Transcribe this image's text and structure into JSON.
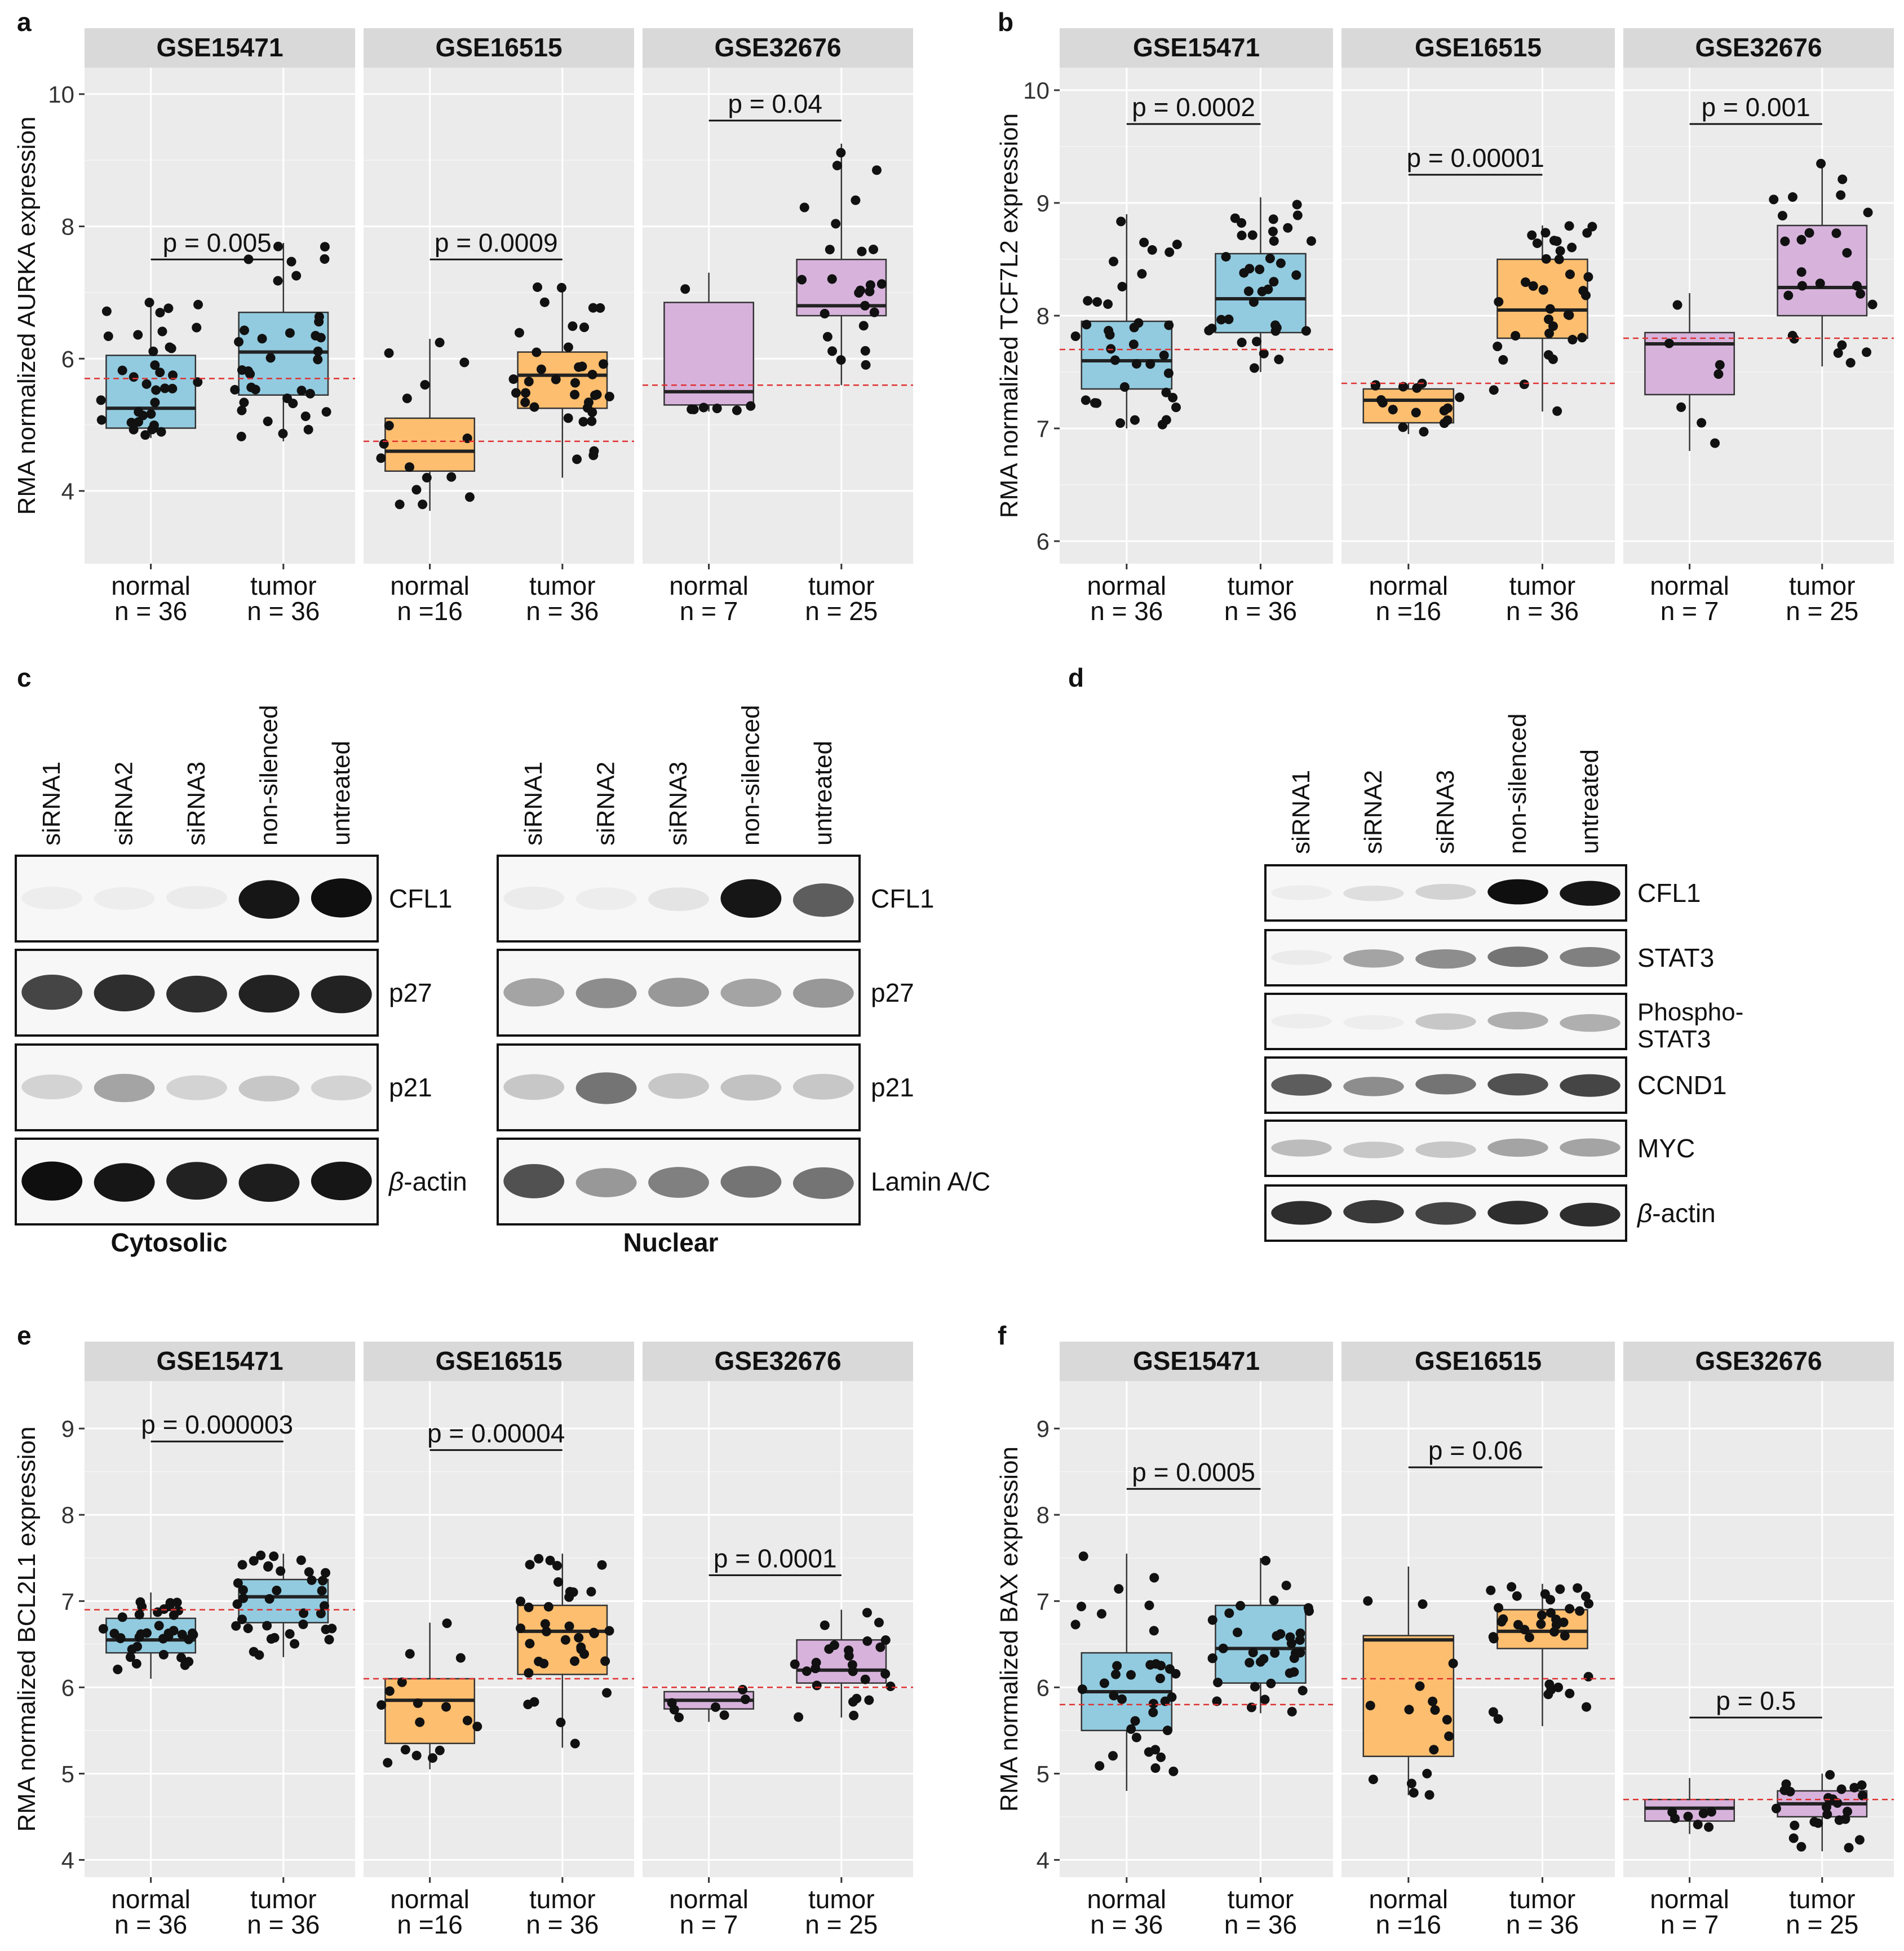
{
  "colors": {
    "normal": "#8ecae6",
    "GSE15471": "#92cbe0",
    "GSE16515": "#fdbe6f",
    "GSE32676": "#d7b3dc",
    "panel_bg": "#ebebeb",
    "strip_bg": "#d9d9d9",
    "ref_line": "#e03030"
  },
  "chart_data": [
    {
      "id": "a",
      "type": "box",
      "panel_label": "a",
      "ylabel": "RMA normalized AURKA expression",
      "ylim": [
        2.9,
        10.4
      ],
      "yticks": [
        4,
        6,
        8,
        10
      ],
      "facets": [
        {
          "title": "GSE15471",
          "p_label": "p = 0.005",
          "p_y": 7.5,
          "ref": 5.7,
          "groups": [
            {
              "label": "normal",
              "n_label": "n = 36",
              "box": {
                "min": 4.8,
                "q1": 4.95,
                "median": 5.25,
                "q3": 6.05,
                "max": 6.9
              }
            },
            {
              "label": "tumor",
              "n_label": "n = 36",
              "box": {
                "min": 4.75,
                "q1": 5.45,
                "median": 6.1,
                "q3": 6.7,
                "max": 7.75
              }
            }
          ]
        },
        {
          "title": "GSE16515",
          "p_label": "p = 0.0009",
          "p_y": 7.5,
          "ref": 4.75,
          "groups": [
            {
              "label": "normal",
              "n_label": "n =16",
              "box": {
                "min": 3.7,
                "q1": 4.3,
                "median": 4.6,
                "q3": 5.1,
                "max": 6.3
              }
            },
            {
              "label": "tumor",
              "n_label": "n = 36",
              "box": {
                "min": 4.2,
                "q1": 5.25,
                "median": 5.75,
                "q3": 6.1,
                "max": 7.1
              }
            }
          ]
        },
        {
          "title": "GSE32676",
          "p_label": "p = 0.04",
          "p_y": 9.6,
          "ref": 5.6,
          "groups": [
            {
              "label": "normal",
              "n_label": "n = 7",
              "box": {
                "min": 5.2,
                "q1": 5.3,
                "median": 5.5,
                "q3": 6.85,
                "max": 7.3
              }
            },
            {
              "label": "tumor",
              "n_label": "n = 25",
              "box": {
                "min": 5.6,
                "q1": 6.65,
                "median": 6.8,
                "q3": 7.5,
                "max": 9.25
              }
            }
          ]
        }
      ]
    },
    {
      "id": "b",
      "type": "box",
      "panel_label": "b",
      "ylabel": "RMA normalized TCF7L2 expression",
      "ylim": [
        5.8,
        10.2
      ],
      "yticks": [
        6,
        7,
        8,
        9,
        10
      ],
      "facets": [
        {
          "title": "GSE15471",
          "p_label": "p = 0.0002",
          "p_y": 9.7,
          "ref": 7.7,
          "groups": [
            {
              "label": "normal",
              "n_label": "n = 36",
              "box": {
                "min": 7.0,
                "q1": 7.35,
                "median": 7.6,
                "q3": 7.95,
                "max": 8.9
              }
            },
            {
              "label": "tumor",
              "n_label": "n = 36",
              "box": {
                "min": 7.5,
                "q1": 7.85,
                "median": 8.15,
                "q3": 8.55,
                "max": 9.05
              }
            }
          ]
        },
        {
          "title": "GSE16515",
          "p_label": "p = 0.00001",
          "p_y": 9.25,
          "ref": 7.4,
          "groups": [
            {
              "label": "normal",
              "n_label": "n =16",
              "box": {
                "min": 6.95,
                "q1": 7.05,
                "median": 7.25,
                "q3": 7.35,
                "max": 7.4
              }
            },
            {
              "label": "tumor",
              "n_label": "n = 36",
              "box": {
                "min": 7.15,
                "q1": 7.8,
                "median": 8.05,
                "q3": 8.5,
                "max": 8.8
              }
            }
          ]
        },
        {
          "title": "GSE32676",
          "p_label": "p = 0.001",
          "p_y": 9.7,
          "ref": 7.8,
          "groups": [
            {
              "label": "normal",
              "n_label": "n = 7",
              "box": {
                "min": 6.8,
                "q1": 7.3,
                "median": 7.75,
                "q3": 7.85,
                "max": 8.2
              }
            },
            {
              "label": "tumor",
              "n_label": "n = 25",
              "box": {
                "min": 7.55,
                "q1": 8.0,
                "median": 8.25,
                "q3": 8.8,
                "max": 9.35
              }
            }
          ]
        }
      ]
    },
    {
      "id": "e",
      "type": "box",
      "panel_label": "e",
      "ylabel": "RMA normalized BCL2L1 expression",
      "ylim": [
        3.8,
        9.55
      ],
      "yticks": [
        4,
        5,
        6,
        7,
        8,
        9
      ],
      "facets": [
        {
          "title": "GSE15471",
          "p_label": "p = 0.000003",
          "p_y": 8.85,
          "ref": 6.9,
          "groups": [
            {
              "label": "normal",
              "n_label": "n = 36",
              "box": {
                "min": 6.1,
                "q1": 6.4,
                "median": 6.55,
                "q3": 6.8,
                "max": 7.1
              }
            },
            {
              "label": "tumor",
              "n_label": "n = 36",
              "box": {
                "min": 6.35,
                "q1": 6.75,
                "median": 7.05,
                "q3": 7.25,
                "max": 7.55
              }
            }
          ]
        },
        {
          "title": "GSE16515",
          "p_label": "p = 0.00004",
          "p_y": 8.75,
          "ref": 6.1,
          "groups": [
            {
              "label": "normal",
              "n_label": "n =16",
              "box": {
                "min": 5.05,
                "q1": 5.35,
                "median": 5.85,
                "q3": 6.1,
                "max": 6.75
              }
            },
            {
              "label": "tumor",
              "n_label": "n = 36",
              "box": {
                "min": 5.3,
                "q1": 6.15,
                "median": 6.65,
                "q3": 6.95,
                "max": 7.55
              }
            }
          ]
        },
        {
          "title": "GSE32676",
          "p_label": "p = 0.0001",
          "p_y": 7.3,
          "ref": 6.0,
          "groups": [
            {
              "label": "normal",
              "n_label": "n = 7",
              "box": {
                "min": 5.6,
                "q1": 5.75,
                "median": 5.85,
                "q3": 5.95,
                "max": 6.0
              }
            },
            {
              "label": "tumor",
              "n_label": "n = 25",
              "box": {
                "min": 5.65,
                "q1": 6.05,
                "median": 6.2,
                "q3": 6.55,
                "max": 6.9
              }
            }
          ]
        }
      ]
    },
    {
      "id": "f",
      "type": "box",
      "panel_label": "f",
      "ylabel": "RMA normalized BAX expression",
      "ylim": [
        3.8,
        9.55
      ],
      "yticks": [
        4,
        5,
        6,
        7,
        8,
        9
      ],
      "facets": [
        {
          "title": "GSE15471",
          "p_label": "p = 0.0005",
          "p_y": 8.3,
          "ref": 5.8,
          "groups": [
            {
              "label": "normal",
              "n_label": "n = 36",
              "box": {
                "min": 4.8,
                "q1": 5.5,
                "median": 5.95,
                "q3": 6.4,
                "max": 7.55
              }
            },
            {
              "label": "tumor",
              "n_label": "n = 36",
              "box": {
                "min": 5.7,
                "q1": 6.05,
                "median": 6.45,
                "q3": 6.95,
                "max": 7.5
              }
            }
          ]
        },
        {
          "title": "GSE16515",
          "p_label": "p = 0.06",
          "p_y": 8.55,
          "ref": 6.1,
          "groups": [
            {
              "label": "normal",
              "n_label": "n =16",
              "box": {
                "min": 4.75,
                "q1": 5.2,
                "median": 6.55,
                "q3": 6.6,
                "max": 7.4
              }
            },
            {
              "label": "tumor",
              "n_label": "n = 36",
              "box": {
                "min": 5.55,
                "q1": 6.45,
                "median": 6.65,
                "q3": 6.9,
                "max": 7.2
              }
            }
          ]
        },
        {
          "title": "GSE32676",
          "p_label": "p = 0.5",
          "p_y": 5.65,
          "ref": 4.7,
          "groups": [
            {
              "label": "normal",
              "n_label": "n = 7",
              "box": {
                "min": 4.3,
                "q1": 4.45,
                "median": 4.6,
                "q3": 4.7,
                "max": 4.95
              }
            },
            {
              "label": "tumor",
              "n_label": "n = 25",
              "box": {
                "min": 4.1,
                "q1": 4.5,
                "median": 4.65,
                "q3": 4.8,
                "max": 5.0
              }
            }
          ]
        }
      ]
    }
  ],
  "blots": {
    "c": {
      "panel_label": "c",
      "lanes": [
        "siRNA1",
        "siRNA2",
        "siRNA3",
        "non-silenced",
        "untreated"
      ],
      "cytosolic": {
        "caption": "Cytosolic",
        "rows": [
          {
            "label": "CFL1",
            "beta": false,
            "intensity": [
              0.03,
              0.02,
              0.05,
              0.95,
              0.98
            ]
          },
          {
            "label": "p27",
            "beta": false,
            "intensity": [
              0.75,
              0.85,
              0.85,
              0.9,
              0.9
            ]
          },
          {
            "label": "p21",
            "beta": false,
            "intensity": [
              0.15,
              0.35,
              0.15,
              0.2,
              0.15
            ]
          },
          {
            "label": "-actin",
            "beta": true,
            "intensity": [
              0.98,
              0.95,
              0.9,
              0.92,
              0.95
            ]
          }
        ]
      },
      "nuclear": {
        "caption": "Nuclear",
        "rows": [
          {
            "label": "CFL1",
            "beta": false,
            "intensity": [
              0.05,
              0.02,
              0.08,
              0.95,
              0.65
            ]
          },
          {
            "label": "p27",
            "beta": false,
            "intensity": [
              0.35,
              0.45,
              0.4,
              0.35,
              0.4
            ]
          },
          {
            "label": "p21",
            "beta": false,
            "intensity": [
              0.2,
              0.55,
              0.2,
              0.22,
              0.2
            ]
          },
          {
            "label": "Lamin A/C",
            "beta": false,
            "intensity": [
              0.7,
              0.4,
              0.5,
              0.55,
              0.55
            ]
          }
        ]
      }
    },
    "d": {
      "panel_label": "d",
      "lanes": [
        "siRNA1",
        "siRNA2",
        "siRNA3",
        "non-silenced",
        "untreated"
      ],
      "rows": [
        {
          "label": "CFL1",
          "beta": false,
          "intensity": [
            0.03,
            0.1,
            0.15,
            0.98,
            0.95
          ]
        },
        {
          "label": "STAT3",
          "beta": false,
          "intensity": [
            0.05,
            0.35,
            0.45,
            0.55,
            0.5
          ]
        },
        {
          "label": "Phospho-",
          "label2": "STAT3",
          "beta": false,
          "intensity": [
            0.03,
            0.02,
            0.2,
            0.3,
            0.3
          ]
        },
        {
          "label": "CCND1",
          "beta": false,
          "intensity": [
            0.65,
            0.45,
            0.55,
            0.7,
            0.75
          ]
        },
        {
          "label": "MYC",
          "beta": false,
          "intensity": [
            0.25,
            0.2,
            0.2,
            0.35,
            0.35
          ]
        },
        {
          "label": "-actin",
          "beta": true,
          "intensity": [
            0.85,
            0.8,
            0.75,
            0.85,
            0.85
          ]
        }
      ]
    }
  }
}
